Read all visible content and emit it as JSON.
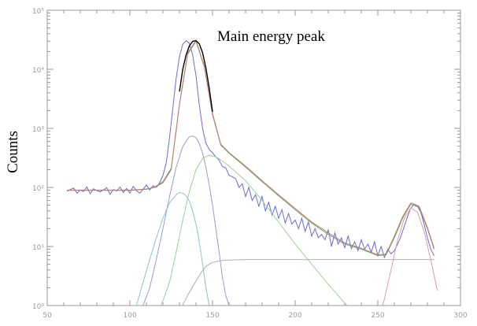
{
  "chart_data": {
    "type": "line",
    "title": "",
    "xlabel": "",
    "ylabel": "Counts",
    "annotation": "Main energy peak",
    "xlim": [
      50,
      300
    ],
    "ylim": [
      1,
      100000
    ],
    "yscale": "log",
    "grid": false,
    "x_ticks": [
      50,
      100,
      150,
      200,
      250,
      300
    ],
    "x_tick_labels": [
      "50",
      "100",
      "150",
      "200",
      "250",
      "300"
    ],
    "y_ticks": [
      1,
      10,
      100,
      1000,
      10000,
      100000
    ],
    "y_tick_labels": [
      "10⁰",
      "10¹",
      "10²",
      "10³",
      "10⁴",
      "10⁵"
    ],
    "series": [
      {
        "color": "#6b6bd9",
        "x": [
          62,
          64,
          66,
          68,
          70,
          72,
          74,
          76,
          78,
          80,
          82,
          84,
          86,
          88,
          90,
          92,
          94,
          96,
          98,
          100,
          102,
          104,
          106,
          108,
          110,
          112,
          114,
          116,
          118,
          120,
          122,
          124,
          126,
          128,
          130,
          132,
          134,
          136,
          138,
          140,
          142,
          144,
          146,
          148,
          150,
          152,
          154,
          156,
          158,
          160,
          162,
          164,
          166,
          168,
          170,
          172,
          174,
          176,
          178,
          180,
          182,
          184,
          186,
          188,
          190,
          192,
          194,
          196,
          198,
          200,
          202,
          204,
          206,
          208,
          210,
          212,
          214,
          216,
          218,
          220,
          222,
          224,
          226,
          228,
          230,
          232,
          234,
          236,
          238,
          240,
          242,
          244,
          246,
          248,
          250,
          252,
          254,
          256,
          258,
          260,
          262,
          264,
          266,
          268,
          270,
          272,
          274,
          276,
          278,
          280,
          282,
          284
        ],
        "y": [
          86,
          92,
          98,
          80,
          90,
          85,
          102,
          78,
          95,
          88,
          84,
          90,
          99,
          76,
          92,
          87,
          101,
          82,
          96,
          80,
          104,
          88,
          80,
          93,
          110,
          90,
          107,
          100,
          120,
          160,
          260,
          700,
          2200,
          7000,
          16500,
          26500,
          30500,
          27500,
          17500,
          7800,
          2500,
          1000,
          560,
          440,
          385,
          330,
          290,
          225,
          215,
          160,
          152,
          140,
          100,
          115,
          70,
          100,
          60,
          75,
          48,
          70,
          40,
          56,
          34,
          48,
          30,
          42,
          25,
          36,
          24,
          28,
          20,
          30,
          18,
          26,
          15,
          20,
          14,
          16,
          13,
          19,
          10,
          17,
          11,
          14,
          9.5,
          15,
          9.2,
          12,
          8.5,
          13,
          9,
          11,
          8,
          12,
          7,
          10,
          6.5,
          9,
          7.5,
          8.5,
          11,
          15,
          22,
          32,
          45,
          52,
          48,
          38,
          24,
          14,
          9,
          7
        ]
      },
      {
        "color": "#6aa56a",
        "x": [
          62,
          70,
          80,
          90,
          100,
          110,
          115,
          120,
          125,
          130,
          135,
          140,
          145,
          150,
          155,
          160,
          170,
          180,
          190,
          200,
          210,
          220,
          230,
          240,
          250,
          255,
          260,
          265,
          270,
          275,
          280,
          284
        ],
        "y": [
          89,
          89,
          89,
          89,
          89,
          93,
          100,
          120,
          200,
          2500,
          18000,
          30000,
          11000,
          1700,
          520,
          380,
          220,
          125,
          72,
          42,
          25,
          16,
          11,
          9,
          7,
          7.2,
          14,
          30,
          52,
          46,
          20,
          9
        ]
      },
      {
        "color": "#c77b7b",
        "x": [
          62,
          70,
          80,
          90,
          100,
          110,
          115,
          120,
          125,
          130,
          135,
          140,
          145,
          150,
          155,
          160,
          170,
          180,
          190,
          200,
          210,
          220,
          230,
          240,
          250,
          255,
          260,
          265,
          270,
          275,
          280,
          284
        ],
        "y": [
          90,
          90,
          90,
          90,
          90,
          94,
          102,
          125,
          210,
          2600,
          19000,
          31000,
          11500,
          1800,
          540,
          390,
          230,
          130,
          75,
          44,
          26,
          17,
          11.5,
          9.3,
          7.2,
          7.5,
          15,
          32,
          55,
          48,
          21,
          9.5
        ]
      },
      {
        "color": "#9b9bd6",
        "x": [
          108,
          112,
          116,
          120,
          124,
          128,
          132,
          136,
          138,
          140,
          142,
          144,
          146,
          148,
          150,
          152,
          154,
          156,
          158,
          160
        ],
        "y": [
          1,
          2,
          6,
          20,
          70,
          220,
          490,
          730,
          740,
          700,
          550,
          380,
          220,
          110,
          50,
          20,
          8,
          3,
          1.5,
          1
        ]
      },
      {
        "color": "#8ac7c7",
        "x": [
          104,
          108,
          112,
          116,
          120,
          124,
          128,
          130,
          132,
          134,
          136,
          138,
          140,
          142,
          144,
          146,
          148,
          150
        ],
        "y": [
          1,
          2.5,
          6,
          14,
          30,
          55,
          75,
          82,
          80,
          72,
          58,
          40,
          24,
          12,
          5,
          2,
          1,
          0.6
        ]
      },
      {
        "color": "#9ad19a",
        "x": [
          116,
          120,
          124,
          128,
          132,
          136,
          140,
          144,
          148,
          152,
          156,
          160,
          170,
          180,
          190,
          200,
          210,
          220,
          230,
          240
        ],
        "y": [
          0.7,
          1.2,
          2.5,
          8,
          28,
          85,
          200,
          310,
          350,
          330,
          280,
          230,
          130,
          60,
          26,
          11,
          5,
          2.3,
          1.1,
          0.6
        ]
      },
      {
        "color": "#b0b0b0",
        "x": [
          125,
          130,
          135,
          140,
          143,
          146,
          150,
          156,
          160,
          170,
          180,
          190,
          200,
          210,
          220,
          230,
          240,
          250,
          255,
          260,
          270,
          280,
          284
        ],
        "y": [
          0.5,
          0.8,
          1.5,
          2.6,
          3.6,
          4.6,
          5.4,
          5.8,
          5.9,
          6,
          6,
          6,
          6,
          6,
          6,
          6,
          6,
          6,
          6,
          6,
          6,
          6,
          6
        ]
      },
      {
        "color": "#d7a0a0",
        "x": [
          250,
          254,
          258,
          262,
          266,
          270,
          274,
          278,
          282,
          286
        ],
        "y": [
          0.5,
          1.3,
          4,
          13,
          30,
          45,
          38,
          18,
          6,
          1.8
        ]
      },
      {
        "color": "#000000",
        "x": [
          130,
          132,
          134,
          136,
          138,
          140,
          142,
          144,
          146,
          148,
          150
        ],
        "y": [
          4200,
          10000,
          17500,
          25000,
          29800,
          30500,
          27000,
          19000,
          10500,
          4800,
          1900
        ]
      }
    ]
  }
}
